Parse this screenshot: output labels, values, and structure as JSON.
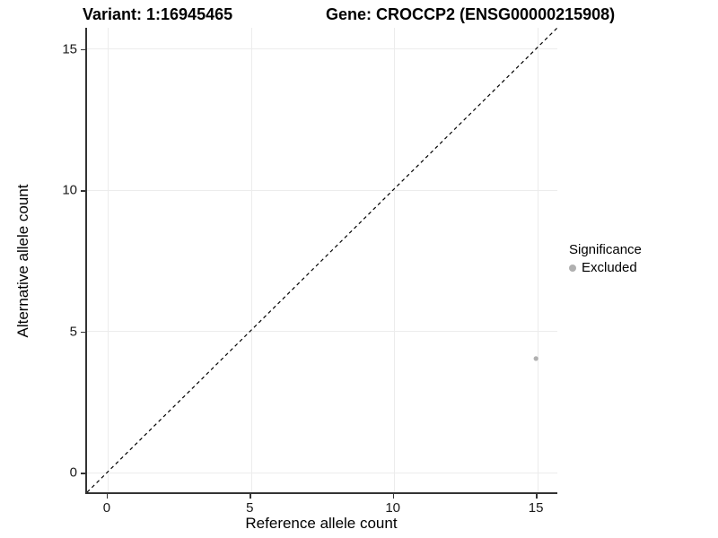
{
  "header": {
    "variant_title": "Variant: 1:16945465",
    "gene_title": "Gene: CROCCP2 (ENSG00000215908)"
  },
  "chart_data": {
    "type": "scatter",
    "title_left": "Variant: 1:16945465",
    "title_right": "Gene: CROCCP2 (ENSG00000215908)",
    "xlabel": "Reference allele count",
    "ylabel": "Alternative allele count",
    "xlim": [
      -0.75,
      15.75
    ],
    "ylim": [
      -0.75,
      15.75
    ],
    "x_ticks": [
      0,
      5,
      10,
      15
    ],
    "y_ticks": [
      0,
      5,
      10,
      15
    ],
    "grid": true,
    "points": [
      {
        "x": 15,
        "y": 4,
        "series": "Excluded"
      }
    ],
    "reference_line": {
      "slope": 1,
      "intercept": 0,
      "style": "dashed",
      "color": "#000000"
    },
    "colors": {
      "point": "#b0b0b0",
      "grid": "#ececec",
      "axis": "#333333",
      "tick_text": "#1a1a1a",
      "background": "#ffffff"
    },
    "legend": {
      "title": "Significance",
      "position": "right",
      "entries": [
        {
          "label": "Excluded",
          "color": "#b0b0b0"
        }
      ]
    }
  }
}
